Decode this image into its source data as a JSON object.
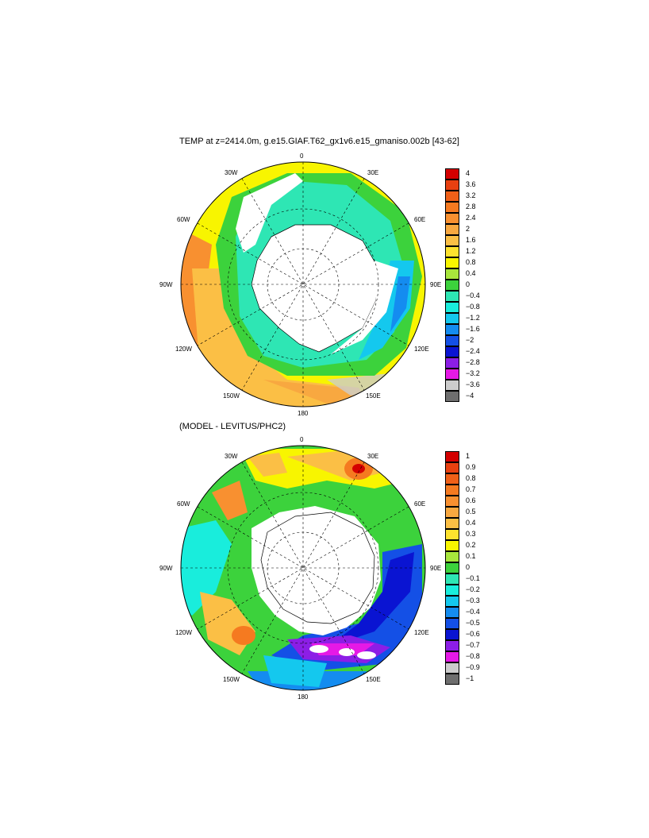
{
  "panels": [
    {
      "title": "TEMP at z=2414.0m, g.e15.GIAF.T62_gx1v6.e15_gmaniso.002b [43-62]",
      "lon_labels": [
        "0",
        "30E",
        "60E",
        "90E",
        "120E",
        "150E",
        "180",
        "150W",
        "120W",
        "90W",
        "60W",
        "30W"
      ],
      "colorbar": {
        "labels": [
          "4",
          "3.6",
          "3.2",
          "2.8",
          "2.4",
          "2",
          "1.6",
          "1.2",
          "0.8",
          "0.4",
          "0",
          "−0.4",
          "−0.8",
          "−1.2",
          "−1.6",
          "−2",
          "−2.4",
          "−2.8",
          "−3.2",
          "−3.6",
          "−4"
        ],
        "colors": [
          "#d40000",
          "#e84010",
          "#f06018",
          "#f57a20",
          "#f89030",
          "#f8a840",
          "#fbbf45",
          "#fde22e",
          "#f8f500",
          "#a8e63c",
          "#3cd23c",
          "#2ee6b4",
          "#19eddc",
          "#14c8ee",
          "#148cf0",
          "#1450e6",
          "#0a14d2",
          "#8c1ee6",
          "#e619e6",
          "#cccccc",
          "#6e6e6e"
        ]
      }
    },
    {
      "title": "(MODEL - LEVITUS/PHC2)",
      "lon_labels": [
        "0",
        "30E",
        "60E",
        "90E",
        "120E",
        "150E",
        "180",
        "150W",
        "120W",
        "90W",
        "60W",
        "30W"
      ],
      "colorbar": {
        "labels": [
          "1",
          "0.9",
          "0.8",
          "0.7",
          "0.6",
          "0.5",
          "0.4",
          "0.3",
          "0.2",
          "0.1",
          "0",
          "−0.1",
          "−0.2",
          "−0.3",
          "−0.4",
          "−0.5",
          "−0.6",
          "−0.7",
          "−0.8",
          "−0.9",
          "−1"
        ],
        "colors": [
          "#d40000",
          "#e84010",
          "#f06018",
          "#f57a20",
          "#f89030",
          "#f8a840",
          "#fbbf45",
          "#fde22e",
          "#f8f500",
          "#a8e63c",
          "#3cd23c",
          "#2ee6b4",
          "#19eddc",
          "#14c8ee",
          "#148cf0",
          "#1450e6",
          "#0a14d2",
          "#8c1ee6",
          "#e619e6",
          "#cccccc",
          "#6e6e6e"
        ]
      }
    }
  ]
}
